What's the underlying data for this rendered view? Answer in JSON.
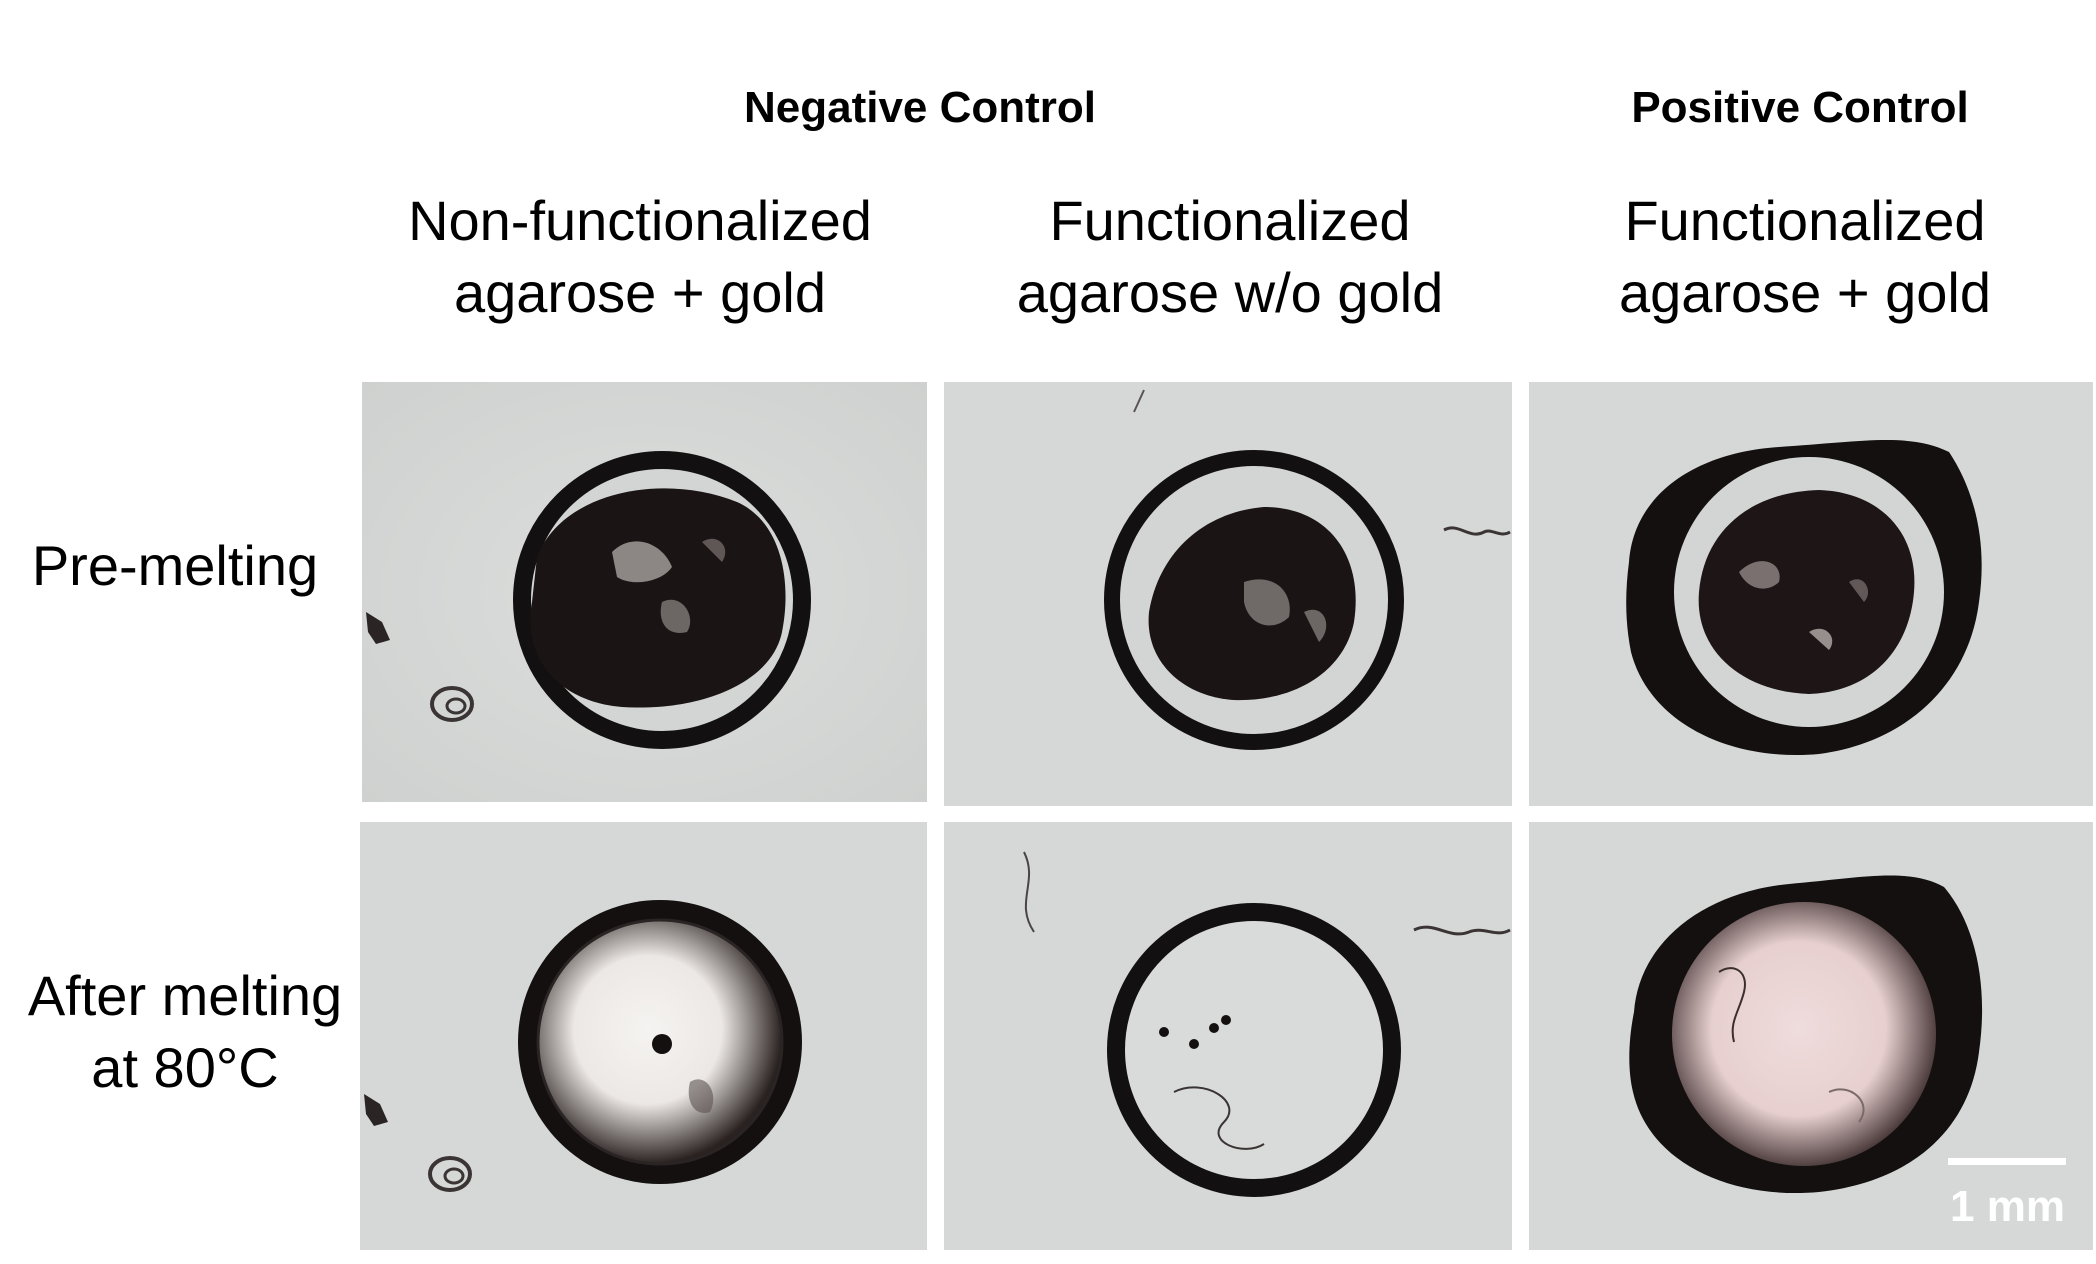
{
  "groups": {
    "negative": "Negative Control",
    "positive": "Positive Control"
  },
  "columns": [
    {
      "line1": "Non-functionalized",
      "line2": "agarose + gold"
    },
    {
      "line1": "Functionalized",
      "line2": "agarose w/o gold"
    },
    {
      "line1": "Functionalized",
      "line2": "agarose + gold"
    }
  ],
  "rows": [
    {
      "line1": "Pre-melting",
      "line2": ""
    },
    {
      "line1": "After melting",
      "line2": "at 80°C"
    }
  ],
  "scale_bar": {
    "label": "1 mm"
  },
  "colors": {
    "background": "#d7d9d8",
    "ring": "#141010",
    "gold_tint": "#e9cfd0"
  }
}
